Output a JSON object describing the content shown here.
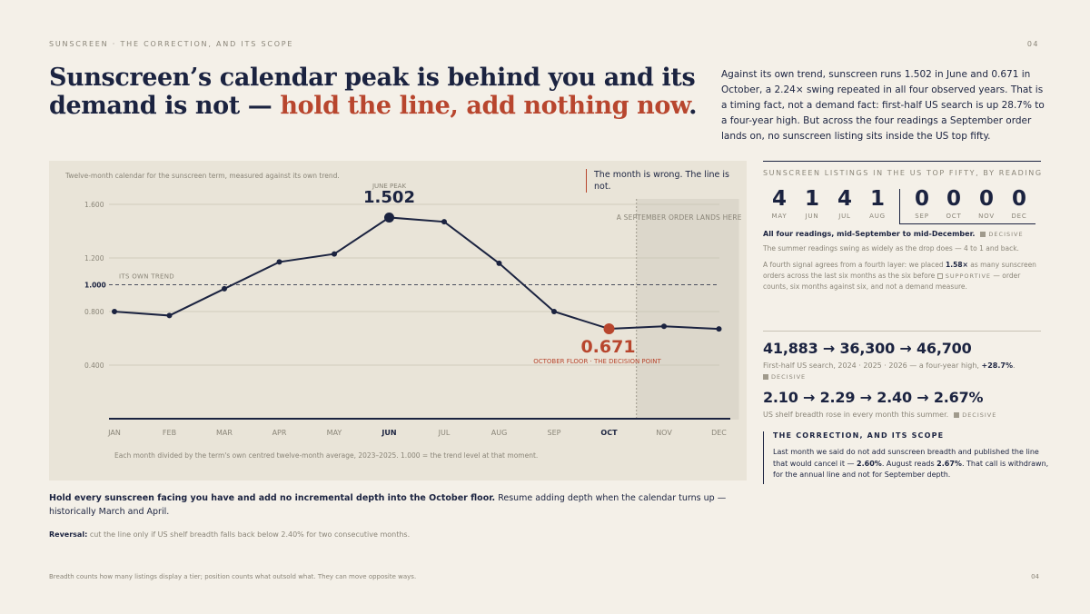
{
  "header": {
    "kicker": "SUNSCREEN · THE CORRECTION, AND ITS SCOPE",
    "page": "04",
    "headline_main": "Sunscreen’s calendar peak is behind you and its demand is not — ",
    "headline_accent": "hold the line, add nothing now",
    "headline_end": "."
  },
  "intro": "Against its own trend, sunscreen runs 1.502 in June and 0.671 in October, a 2.24× swing repeated in all four observed years. That is a timing fact, not a demand fact: first-half US search is up 28.7% to a four-year high. But across the four readings a September order lands on, no sunscreen listing sits inside the US top fifty.",
  "chart_data": {
    "type": "line",
    "header": "Twelve-month calendar for the sunscreen term, measured against its own trend.",
    "callout": "The month is wrong. The line is not.",
    "categories": [
      "JAN",
      "FEB",
      "MAR",
      "APR",
      "MAY",
      "JUN",
      "JUL",
      "AUG",
      "SEP",
      "OCT",
      "NOV",
      "DEC"
    ],
    "values": [
      0.8,
      0.77,
      0.97,
      1.17,
      1.23,
      1.502,
      1.47,
      1.16,
      0.8,
      0.671,
      0.69,
      0.67
    ],
    "ylim": [
      0.1,
      1.7
    ],
    "yticks": [
      0.4,
      0.8,
      1.0,
      1.2,
      1.6
    ],
    "ytick_labels": [
      "0.400",
      "0.800",
      "1.000",
      "1.200",
      "1.600"
    ],
    "trend_value": 1.0,
    "trend_label": "ITS OWN TREND",
    "peak": {
      "index": 5,
      "label": "JUNE PEAK",
      "value_text": "1.502"
    },
    "floor": {
      "index": 9,
      "label": "OCTOBER FLOOR · THE DECISION POINT",
      "value_text": "0.671"
    },
    "order_window": {
      "from": 9.5,
      "to": 11.2,
      "label": "A SEPTEMBER ORDER LANDS HERE"
    },
    "note": "Each month divided by the term's own centred twelve-month average, 2023–2025. 1.000 = the trend level at that moment.",
    "colors": {
      "line": "#1b2340",
      "accent": "#b8462e",
      "grid": "#c9c3b5",
      "shade": "#dcd7cb"
    }
  },
  "listings": {
    "title": "SUNSCREEN LISTINGS IN THE US TOP FIFTY, BY READING",
    "readings": [
      {
        "n": "4",
        "m": "MAY"
      },
      {
        "n": "1",
        "m": "JUN"
      },
      {
        "n": "4",
        "m": "JUL"
      },
      {
        "n": "1",
        "m": "AUG"
      },
      {
        "n": "0",
        "m": "SEP"
      },
      {
        "n": "0",
        "m": "OCT"
      },
      {
        "n": "0",
        "m": "NOV"
      },
      {
        "n": "0",
        "m": "DEC"
      }
    ],
    "line1": "All four readings, mid-September to mid-December.",
    "tag_decisive": "DECISIVE",
    "line2": "The summer readings swing as widely as the drop does — 4 to 1 and back.",
    "line3_a": "A fourth signal agrees from a fourth layer: we placed ",
    "line3_b": "1.58×",
    "line3_c": " as many sunscreen orders across the last six months as the six before ",
    "tag_supportive": "SUPPORTIVE",
    "line3_d": " — order counts, six months against six, and not a demand measure."
  },
  "search": {
    "seq": "41,883 → 36,300 → 46,700",
    "cap_a": "First-half US search, 2024 · 2025 · 2026 — a four-year high, ",
    "cap_b": "+28.7%",
    "cap_c": ".",
    "tag": "DECISIVE"
  },
  "breadth": {
    "seq": "2.10 → 2.29 → 2.40 → 2.67%",
    "cap": "US shelf breadth rose in every month this summer.",
    "tag": "DECISIVE"
  },
  "correction": {
    "title": "THE CORRECTION, AND ITS SCOPE",
    "body_a": "Last month we said do not add sunscreen breadth and published the line that would cancel it — ",
    "body_b": "2.60%",
    "body_c": ". August reads ",
    "body_d": "2.67%",
    "body_e": ". That call is withdrawn, for the annual line and not for September depth."
  },
  "action": {
    "bold": "Hold every sunscreen facing you have and add no incremental depth into the October floor.",
    "rest": " Resume adding depth when the calendar turns up — historically March and April."
  },
  "reversal": {
    "label": "Reversal:",
    "text": " cut the line only if US shelf breadth falls back below 2.40% for two consecutive months."
  },
  "footer": {
    "note": "Breadth counts how many listings display a tier; position counts what outsold what. They can move opposite ways.",
    "page": "04"
  }
}
